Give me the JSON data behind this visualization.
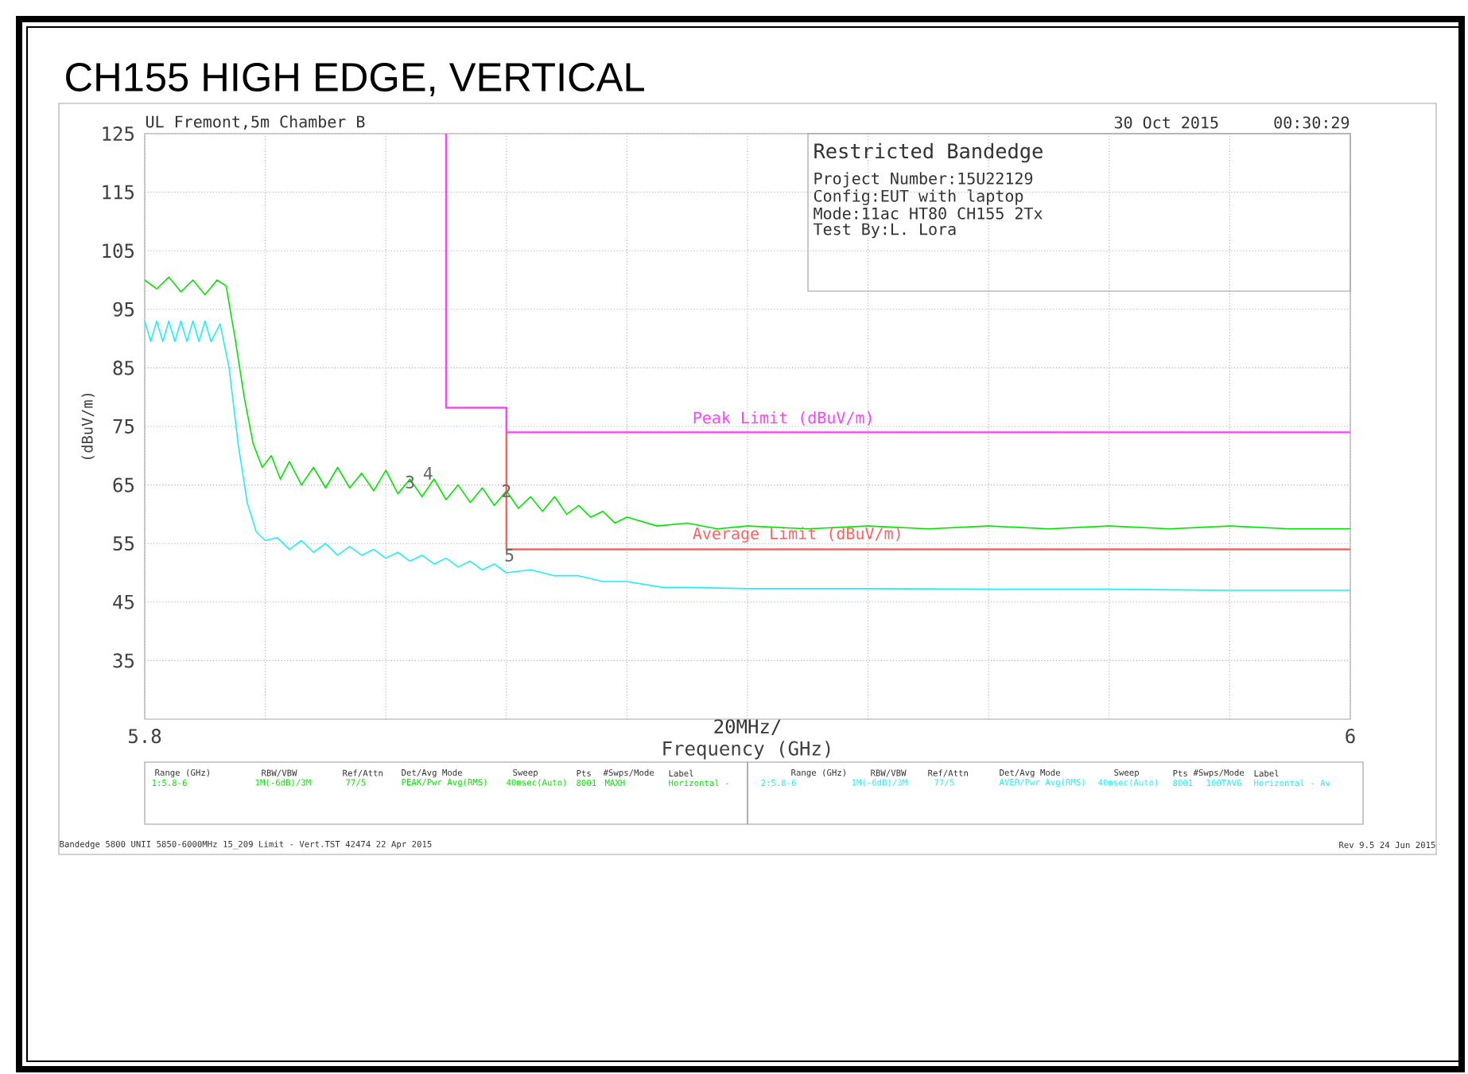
{
  "chart_data": {
    "type": "line",
    "title": "CH155 HIGH EDGE, VERTICAL",
    "xlabel": "Frequency (GHz)",
    "ylabel": "(dBuV/m)",
    "xlim": [
      5.8,
      6.0
    ],
    "ylim": [
      25,
      125
    ],
    "xticks": [
      5.8,
      {
        "value": 5.82,
        "label": null
      },
      {
        "value": 5.84,
        "label": null
      },
      {
        "value": 5.86,
        "label": null
      },
      {
        "value": 5.88,
        "label": null
      },
      {
        "value": 5.9,
        "label": null
      },
      {
        "value": 5.92,
        "label": null
      },
      {
        "value": 5.94,
        "label": null
      },
      {
        "value": 5.96,
        "label": null
      },
      {
        "value": 5.98,
        "label": null
      },
      6
    ],
    "yticks": [
      35,
      45,
      55,
      65,
      75,
      85,
      95,
      105,
      115,
      125
    ],
    "grid": true,
    "marker": "none",
    "line_style": "solid",
    "series": [
      {
        "color": "#00e600",
        "x": [
          5.8,
          5.802,
          5.804,
          5.806,
          5.808,
          5.81,
          5.812,
          5.8135,
          5.815,
          5.8165,
          5.818,
          5.8195,
          5.821,
          5.8225,
          5.824,
          5.826,
          5.828,
          5.83,
          5.832,
          5.834,
          5.836,
          5.838,
          5.84,
          5.842,
          5.844,
          5.846,
          5.848,
          5.85,
          5.852,
          5.854,
          5.856,
          5.858,
          5.86,
          5.862,
          5.864,
          5.866,
          5.868,
          5.87,
          5.872,
          5.874,
          5.876,
          5.878,
          5.88,
          5.885,
          5.89,
          5.895,
          5.9,
          5.91,
          5.92,
          5.93,
          5.94,
          5.95,
          5.96,
          5.97,
          5.98,
          5.99,
          6.0
        ],
        "values": [
          100,
          98.5,
          100.5,
          98,
          100,
          97.5,
          100,
          99,
          90,
          80,
          72,
          68,
          70,
          66,
          69,
          65,
          68,
          64.5,
          68,
          64.5,
          67,
          64,
          67.5,
          63.5,
          66,
          63,
          66,
          62.5,
          65,
          62,
          64.5,
          61.5,
          64,
          61,
          63,
          60.5,
          63,
          60,
          61.5,
          59.5,
          60.5,
          58.5,
          59.5,
          58,
          58.5,
          57.5,
          58,
          57.5,
          58,
          57.5,
          58,
          57.5,
          58,
          57.5,
          58,
          57.5,
          57.5
        ]
      },
      {
        "color": "#20f0f0",
        "x": [
          5.8,
          5.801,
          5.802,
          5.803,
          5.804,
          5.805,
          5.806,
          5.807,
          5.808,
          5.809,
          5.81,
          5.811,
          5.8125,
          5.814,
          5.8155,
          5.817,
          5.8185,
          5.82,
          5.822,
          5.824,
          5.826,
          5.828,
          5.83,
          5.832,
          5.834,
          5.836,
          5.838,
          5.84,
          5.842,
          5.844,
          5.846,
          5.848,
          5.85,
          5.852,
          5.854,
          5.856,
          5.858,
          5.86,
          5.864,
          5.868,
          5.872,
          5.876,
          5.88,
          5.886,
          5.89,
          5.9,
          5.92,
          5.94,
          5.96,
          5.98,
          6.0
        ],
        "values": [
          93,
          89.5,
          93,
          89.5,
          93,
          89.5,
          93,
          89.5,
          93,
          89.5,
          93,
          89.5,
          92.5,
          85,
          72,
          62,
          57,
          55.5,
          56,
          54,
          55.5,
          53.5,
          55,
          53,
          54.5,
          53,
          54,
          52.5,
          53.5,
          52,
          53,
          51.5,
          52.5,
          51,
          52,
          50.5,
          51.5,
          50,
          50.5,
          49.5,
          49.5,
          48.5,
          48.5,
          47.5,
          47.5,
          47.3,
          47.3,
          47.2,
          47.2,
          47,
          47
        ]
      },
      {
        "name": "Peak Limit (dBuV/m)",
        "color": "#ff40ff",
        "x": [
          5.85,
          5.85,
          5.86,
          5.86,
          6.0
        ],
        "values": [
          125,
          78.2,
          78.2,
          74,
          74
        ]
      },
      {
        "name": "Average Limit (dBuV/m)",
        "color": "#ff6060",
        "x": [
          5.86,
          5.86,
          6.0
        ],
        "values": [
          74,
          54,
          54
        ]
      }
    ],
    "annotations": [
      "UL Fremont,5m Chamber B",
      "30 Oct 2015",
      "00:30:29",
      "Restricted Bandedge",
      "Project Number:15U22129",
      "Config:EUT with laptop",
      "Mode:11ac HT80 CH155 2Tx",
      "Test By:L. Lora",
      "Range (GHz)",
      "RBW/VBW",
      "Ref/Attn",
      "Det/Avg Mode",
      "Sweep",
      "Pts",
      "#Swps/Mode",
      "Label",
      "1:5.8-6",
      "1M(-6dB)/3M",
      "77/5",
      "PEAK/Pwr Avg(RMS)",
      "40msec(Auto)",
      "8001",
      "MAXH",
      "Horizontal -",
      "Range (GHz)",
      "RBW/VBW",
      "Ref/Attn",
      "Det/Avg Mode",
      "Sweep",
      "Pts",
      "#Swps/Mode",
      "Label",
      "2:5.8-6",
      "1M(-6dB)/3M",
      "77/5",
      "AVER/Pwr Avg(RMS)",
      "40msec(Auto)",
      "8001",
      "100TAVG",
      "Horizontal - Av",
      "Bandedge 5800 UNII 5850-6000MHz 15_209 Limit - Vert.TST 42474 22 Apr 2015",
      "Rev 9.5 24 Jun 2015",
      "20MHz/",
      {
        "text": "4",
        "x": 5.847,
        "y": 67
      },
      {
        "text": "3",
        "x": 5.844,
        "y": 65.5
      },
      {
        "text": "2",
        "x": 5.86,
        "y": 64
      },
      {
        "text": "5",
        "x": 5.8605,
        "y": 53
      }
    ]
  }
}
